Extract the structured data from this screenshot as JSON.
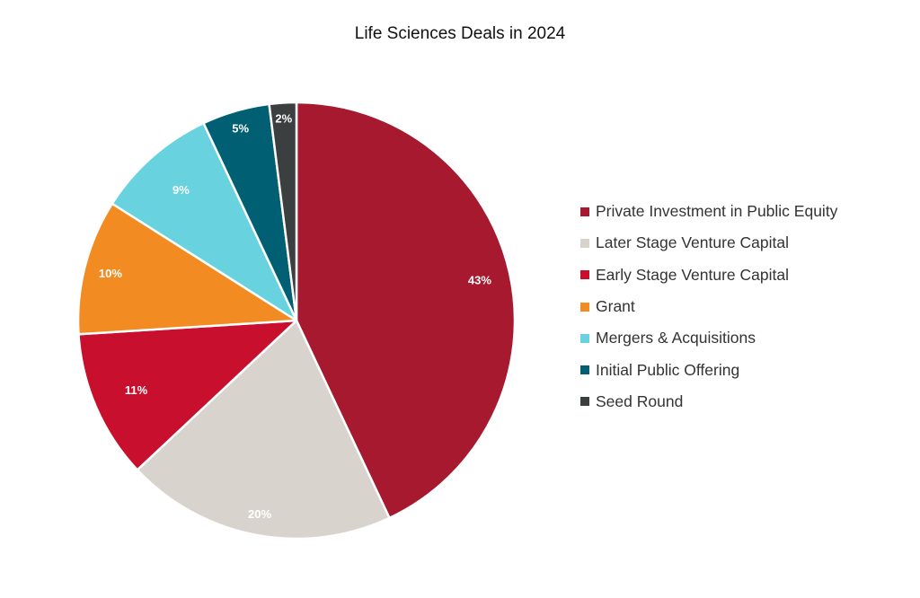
{
  "chart_data": {
    "type": "pie",
    "title": "Life Sciences Deals in 2024",
    "start": "top",
    "direction": "clockwise",
    "legend_position": "right",
    "slices": [
      {
        "label": "Private Investment in Public Equity",
        "value": 43,
        "display": "43%",
        "color": "#a6192e"
      },
      {
        "label": "Later Stage Venture Capital",
        "value": 20,
        "display": "20%",
        "color": "#d9d3ce"
      },
      {
        "label": "Early Stage Venture Capital",
        "value": 11,
        "display": "11%",
        "color": "#c8102e"
      },
      {
        "label": "Grant",
        "value": 10,
        "display": "10%",
        "color": "#f28c22"
      },
      {
        "label": "Mergers & Acquisitions",
        "value": 9,
        "display": "9%",
        "color": "#68d2df"
      },
      {
        "label": "Initial Public Offering",
        "value": 5,
        "display": "5%",
        "color": "#005f73"
      },
      {
        "label": "Seed Round",
        "value": 2,
        "display": "2%",
        "color": "#3b3f40"
      }
    ]
  }
}
